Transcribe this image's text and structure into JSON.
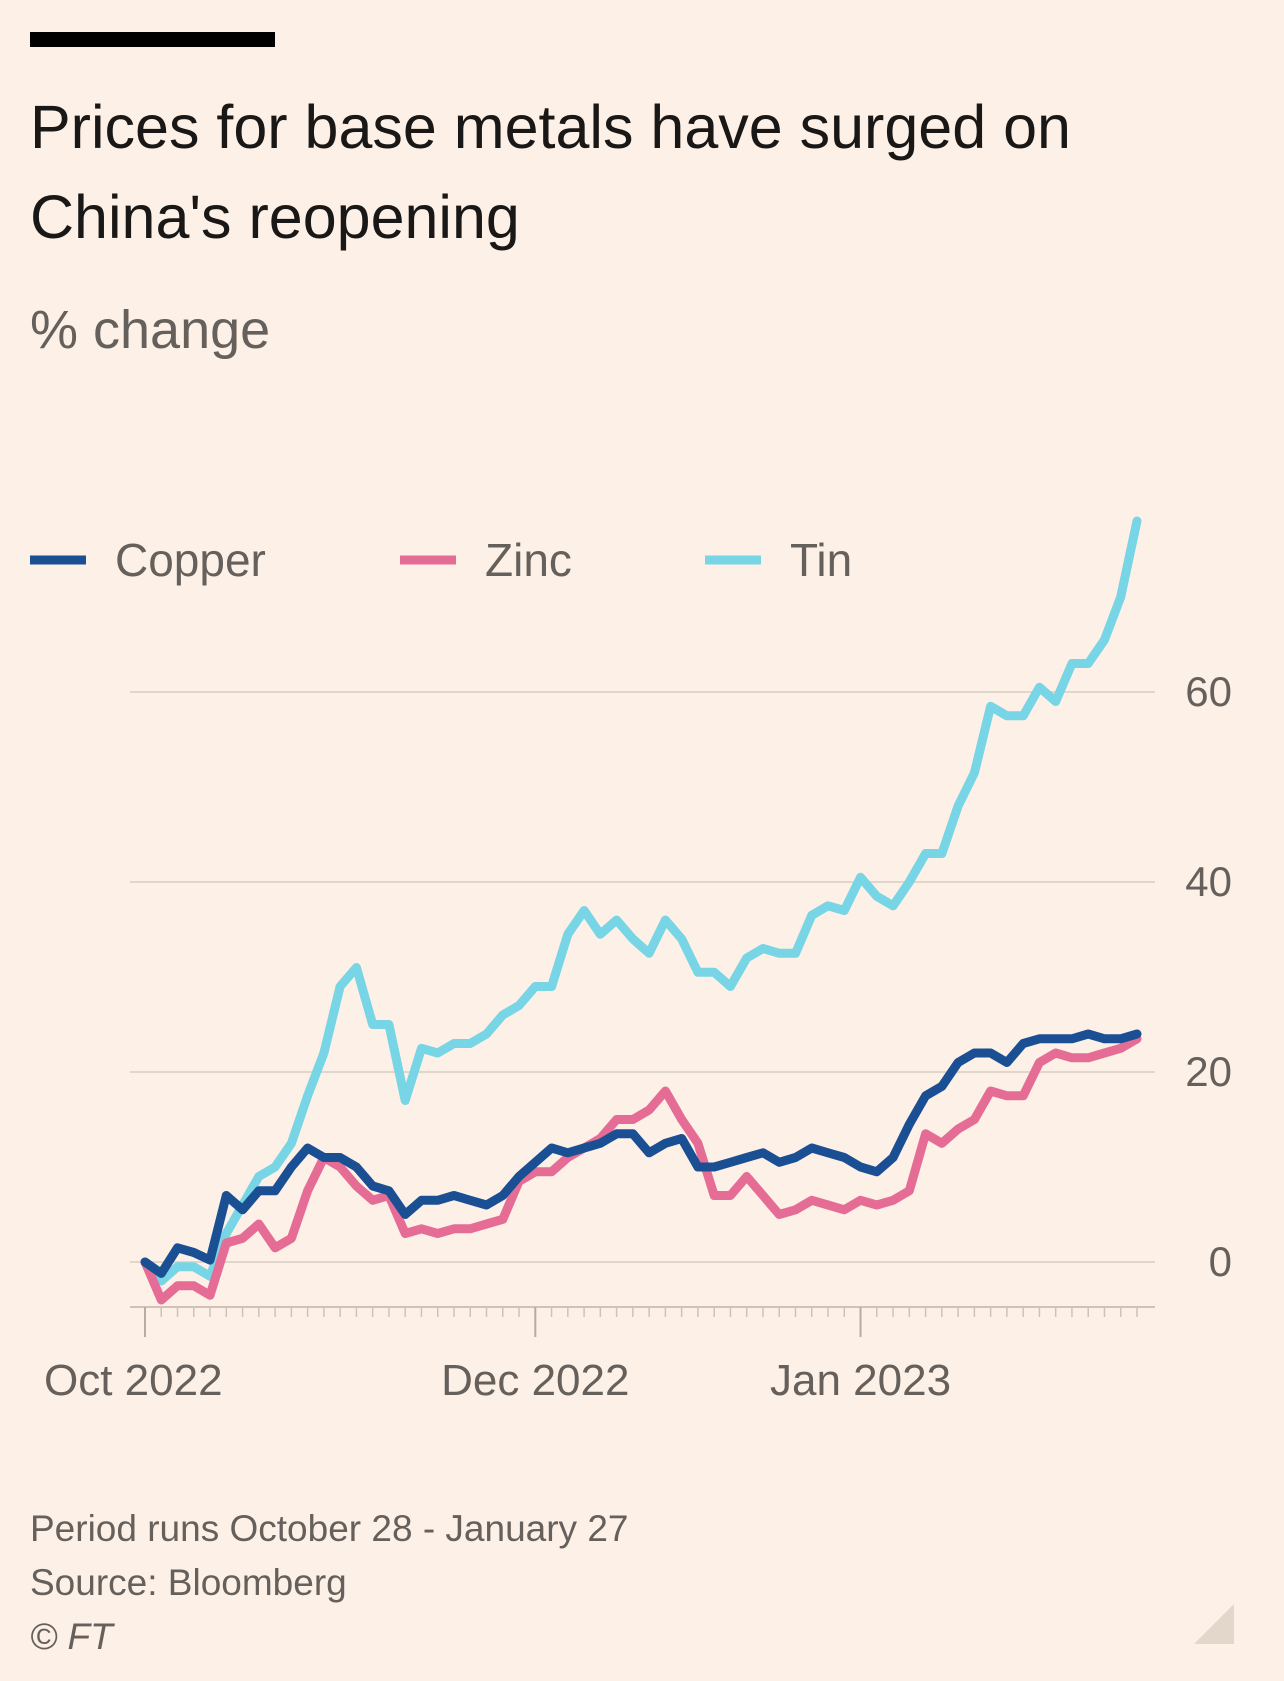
{
  "header": {
    "title": "Prices for base metals have surged on China's reopening",
    "subtitle": "% change"
  },
  "footer": {
    "note": "Period runs October 28 - January 27",
    "source": "Source: Bloomberg",
    "copyright": "© FT"
  },
  "colors": {
    "background": "#fdf1e7",
    "copper": "#1b4f94",
    "zinc": "#e56c95",
    "tin": "#77d5e5",
    "grid": "#e0d6cc",
    "tick_text": "#66605c"
  },
  "chart_data": {
    "type": "line",
    "title": "Prices for base metals have surged on China's reopening",
    "ylabel": "% change",
    "xlabel": "",
    "ylim": [
      -4,
      78
    ],
    "yticks": [
      0,
      20,
      40,
      60
    ],
    "xticks": [
      {
        "label": "Oct 2022",
        "index": 0
      },
      {
        "label": "Dec 2022",
        "index": 24
      },
      {
        "label": "Jan 2023",
        "index": 44
      }
    ],
    "grid": true,
    "legend_position": "top-left",
    "series": [
      {
        "name": "Copper",
        "color": "#1b4f94",
        "values": [
          0,
          -1.2,
          1.5,
          1,
          0.2,
          7,
          5.5,
          7.5,
          7.5,
          10,
          12,
          11,
          11,
          10,
          8,
          7.5,
          5,
          6.5,
          6.5,
          7,
          6.5,
          6,
          7,
          9,
          10.5,
          12,
          11.5,
          12,
          12.5,
          13.5,
          13.5,
          11.5,
          12.5,
          13,
          10,
          10,
          10.5,
          11,
          11.5,
          10.5,
          11,
          12,
          11.5,
          11,
          10,
          9.5,
          11,
          14.5,
          17.5,
          18.5,
          21,
          22,
          22,
          21,
          23,
          23.5,
          23.5,
          23.5,
          24,
          23.5,
          23.5,
          24
        ]
      },
      {
        "name": "Zinc",
        "color": "#e56c95",
        "values": [
          0,
          -4,
          -2.5,
          -2.5,
          -3.5,
          2,
          2.5,
          4,
          1.5,
          2.5,
          7.5,
          11,
          10,
          8,
          6.5,
          7,
          3,
          3.5,
          3,
          3.5,
          3.5,
          4,
          4.5,
          8.5,
          9.5,
          9.5,
          11,
          12,
          13,
          15,
          15,
          16,
          18,
          15,
          12.5,
          7,
          7,
          9,
          7,
          5,
          5.5,
          6.5,
          6,
          5.5,
          6.5,
          6,
          6.5,
          7.5,
          13.5,
          12.5,
          14,
          15,
          18,
          17.5,
          17.5,
          21,
          22,
          21.5,
          21.5,
          22,
          22.5,
          23.5
        ]
      },
      {
        "name": "Tin",
        "color": "#77d5e5",
        "values": [
          0,
          -2,
          -0.5,
          -0.5,
          -1.5,
          3,
          6,
          9,
          10,
          12.5,
          17.5,
          22,
          29,
          31,
          25,
          25,
          17,
          22.5,
          22,
          23,
          23,
          24,
          26,
          27,
          29,
          29,
          34.5,
          37,
          34.5,
          36,
          34,
          32.5,
          36,
          34,
          30.5,
          30.5,
          29,
          32,
          33,
          32.5,
          32.5,
          36.5,
          37.5,
          37,
          40.5,
          38.5,
          37.5,
          40,
          43,
          43,
          48,
          51.5,
          58.5,
          57.5,
          57.5,
          60.5,
          59,
          63,
          63,
          65.5,
          70,
          78
        ]
      }
    ]
  }
}
